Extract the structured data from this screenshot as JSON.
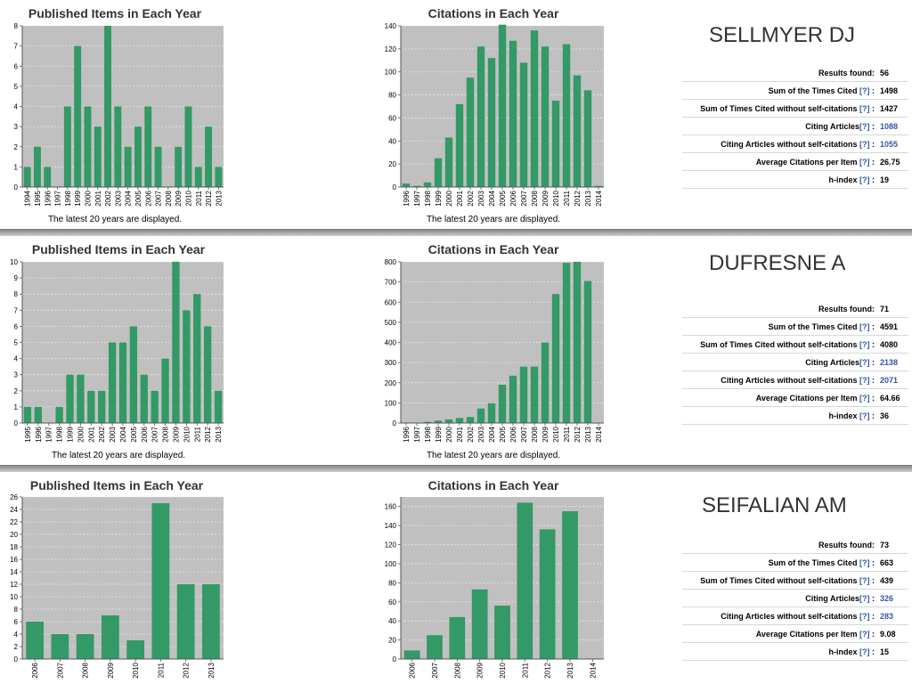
{
  "common": {
    "published_title": "Published Items in Each Year",
    "citations_title": "Citations in Each Year",
    "note": "The latest 20 years are displayed.",
    "bar_color": "#339966",
    "plot_bg": "#c0c0c0",
    "help_text": "[?]"
  },
  "panels": [
    {
      "name": "SELLMYER DJ",
      "stats": {
        "results_found": {
          "label": "Results found:",
          "value": "56"
        },
        "sum_times_cited": {
          "label": "Sum of the Times Cited",
          "suffix": ":",
          "value": "1498"
        },
        "sum_without_self": {
          "label": "Sum of Times Cited without self-citations",
          "suffix": ":",
          "value": "1427"
        },
        "citing_articles": {
          "label": "Citing Articles",
          "suffix": ":",
          "value": "1088"
        },
        "citing_without_self": {
          "label": "Citing Articles without self-citations",
          "suffix": ":",
          "value": "1055"
        },
        "avg_citations": {
          "label": "Average Citations per Item",
          "suffix": ":",
          "value": "26.75"
        },
        "h_index": {
          "label": "h-index",
          "suffix": ":",
          "value": "19"
        }
      }
    },
    {
      "name": "DUFRESNE A",
      "stats": {
        "results_found": {
          "label": "Results found:",
          "value": "71"
        },
        "sum_times_cited": {
          "label": "Sum of the Times Cited",
          "suffix": ":",
          "value": "4591"
        },
        "sum_without_self": {
          "label": "Sum of Times Cited without self-citations",
          "suffix": ":",
          "value": "4080"
        },
        "citing_articles": {
          "label": "Citing Articles",
          "suffix": ":",
          "value": "2138"
        },
        "citing_without_self": {
          "label": "Citing Articles without self-citations",
          "suffix": ":",
          "value": "2071"
        },
        "avg_citations": {
          "label": "Average Citations per Item",
          "suffix": ":",
          "value": "64.66"
        },
        "h_index": {
          "label": "h-index",
          "suffix": ":",
          "value": "36"
        }
      }
    },
    {
      "name": "SEIFALIAN AM",
      "stats": {
        "results_found": {
          "label": "Results found:",
          "value": "73"
        },
        "sum_times_cited": {
          "label": "Sum of the Times Cited",
          "suffix": ":",
          "value": "663"
        },
        "sum_without_self": {
          "label": "Sum of Times Cited without self-citations",
          "suffix": ":",
          "value": "439"
        },
        "citing_articles": {
          "label": "Citing Articles",
          "suffix": ":",
          "value": "326"
        },
        "citing_without_self": {
          "label": "Citing Articles without self-citations",
          "suffix": ":",
          "value": "283"
        },
        "avg_citations": {
          "label": "Average Citations per Item",
          "suffix": ":",
          "value": "9.08"
        },
        "h_index": {
          "label": "h-index",
          "suffix": ":",
          "value": "15"
        }
      }
    }
  ],
  "chart_data": [
    {
      "type": "bar",
      "title": "Published Items in Each Year",
      "categories": [
        "1994",
        "1995",
        "1996",
        "1997",
        "1998",
        "1999",
        "2000",
        "2001",
        "2002",
        "2003",
        "2004",
        "2005",
        "2006",
        "2007",
        "2008",
        "2009",
        "2010",
        "2011",
        "2012",
        "2013"
      ],
      "values": [
        1,
        2,
        1,
        0,
        4,
        7,
        4,
        3,
        8,
        4,
        2,
        3,
        4,
        2,
        0,
        2,
        4,
        1,
        3,
        1
      ],
      "ylim": [
        0,
        8
      ],
      "yticks": [
        0,
        1,
        2,
        3,
        4,
        5,
        6,
        7,
        8
      ],
      "grid": true
    },
    {
      "type": "bar",
      "title": "Citations in Each Year",
      "categories": [
        "1996",
        "1997",
        "1998",
        "1999",
        "2000",
        "2001",
        "2002",
        "2003",
        "2004",
        "2005",
        "2006",
        "2007",
        "2008",
        "2009",
        "2010",
        "2011",
        "2012",
        "2013",
        "2014"
      ],
      "values": [
        3,
        1,
        4,
        25,
        43,
        72,
        95,
        122,
        112,
        141,
        127,
        108,
        136,
        122,
        75,
        124,
        97,
        84,
        1
      ],
      "ylim": [
        0,
        140
      ],
      "yticks": [
        0,
        20,
        40,
        60,
        80,
        100,
        120,
        140
      ],
      "grid": true
    },
    {
      "type": "bar",
      "title": "Published Items in Each Year",
      "categories": [
        "1995",
        "1996",
        "1997",
        "1998",
        "1999",
        "2000",
        "2001",
        "2002",
        "2003",
        "2004",
        "2005",
        "2006",
        "2007",
        "2008",
        "2009",
        "2010",
        "2011",
        "2012",
        "2013"
      ],
      "values": [
        1,
        1,
        0,
        1,
        3,
        3,
        2,
        2,
        5,
        5,
        6,
        3,
        2,
        4,
        10,
        7,
        8,
        6,
        2
      ],
      "ylim": [
        0,
        10
      ],
      "yticks": [
        0,
        1,
        2,
        3,
        4,
        5,
        6,
        7,
        8,
        9,
        10
      ],
      "grid": true
    },
    {
      "type": "bar",
      "title": "Citations in Each Year",
      "categories": [
        "1996",
        "1997",
        "1998",
        "1999",
        "2000",
        "2001",
        "2002",
        "2003",
        "2004",
        "2005",
        "2006",
        "2007",
        "2008",
        "2009",
        "2010",
        "2011",
        "2012",
        "2013",
        "2014"
      ],
      "values": [
        0,
        2,
        6,
        12,
        18,
        25,
        30,
        72,
        98,
        190,
        235,
        280,
        280,
        400,
        640,
        795,
        800,
        705,
        0
      ],
      "ylim": [
        0,
        800
      ],
      "yticks": [
        0,
        100,
        200,
        300,
        400,
        500,
        600,
        700,
        800
      ],
      "grid": true
    },
    {
      "type": "bar",
      "title": "Published Items in Each Year",
      "categories": [
        "2006",
        "2007",
        "2008",
        "2009",
        "2010",
        "2011",
        "2012",
        "2013"
      ],
      "values": [
        6,
        4,
        4,
        7,
        3,
        25,
        12,
        12
      ],
      "ylim": [
        0,
        26
      ],
      "yticks": [
        0,
        2,
        4,
        6,
        8,
        10,
        12,
        14,
        16,
        18,
        20,
        22,
        24,
        26
      ],
      "grid": true
    },
    {
      "type": "bar",
      "title": "Citations in Each Year",
      "categories": [
        "2006",
        "2007",
        "2008",
        "2009",
        "2010",
        "2011",
        "2012",
        "2013",
        "2014"
      ],
      "values": [
        9,
        25,
        44,
        73,
        56,
        164,
        136,
        155,
        0
      ],
      "ylim": [
        0,
        170
      ],
      "yticks": [
        0,
        20,
        40,
        60,
        80,
        100,
        120,
        140,
        160
      ],
      "grid": true
    }
  ]
}
